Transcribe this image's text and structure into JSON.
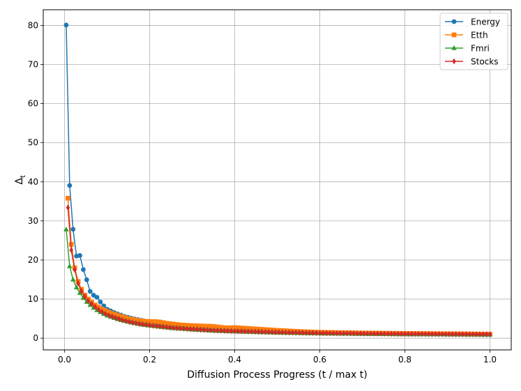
{
  "chart_data": {
    "type": "line",
    "title": "",
    "xlabel": "Diffusion Process Progress (t / max t)",
    "ylabel_main": "Δ",
    "ylabel_sub": "t",
    "xlim": [
      -0.05,
      1.05
    ],
    "ylim": [
      -3,
      84
    ],
    "xticks": [
      0.0,
      0.2,
      0.4,
      0.6,
      0.8,
      1.0
    ],
    "xtick_labels": [
      "0.0",
      "0.2",
      "0.4",
      "0.6",
      "0.8",
      "1.0"
    ],
    "yticks": [
      0,
      10,
      20,
      30,
      40,
      50,
      60,
      70,
      80
    ],
    "ytick_labels": [
      "0",
      "10",
      "20",
      "30",
      "40",
      "50",
      "60",
      "70",
      "80"
    ],
    "grid": true,
    "legend_position": "top-right",
    "num_points": 125,
    "series": [
      {
        "name": "Energy",
        "color": "#1f77b4",
        "marker": "circle",
        "keypoints": [
          [
            0.004,
            80.1
          ],
          [
            0.012,
            39.1
          ],
          [
            0.02,
            27.9
          ],
          [
            0.028,
            21.0
          ],
          [
            0.036,
            21.2
          ],
          [
            0.044,
            17.6
          ],
          [
            0.052,
            15.0
          ],
          [
            0.06,
            12.0
          ],
          [
            0.068,
            11.0
          ],
          [
            0.076,
            10.5
          ],
          [
            0.084,
            9.3
          ],
          [
            0.092,
            8.3
          ],
          [
            0.1,
            7.4
          ],
          [
            0.12,
            6.4
          ],
          [
            0.14,
            5.6
          ],
          [
            0.16,
            5.0
          ],
          [
            0.18,
            4.6
          ],
          [
            0.2,
            4.1
          ],
          [
            0.25,
            3.4
          ],
          [
            0.3,
            2.8
          ],
          [
            0.35,
            2.4
          ],
          [
            0.4,
            2.1
          ],
          [
            0.5,
            1.7
          ],
          [
            0.6,
            1.4
          ],
          [
            0.7,
            1.2
          ],
          [
            0.8,
            1.1
          ],
          [
            0.9,
            1.0
          ],
          [
            1.0,
            0.9
          ]
        ]
      },
      {
        "name": "Etth",
        "color": "#ff7f0e",
        "marker": "square",
        "keypoints": [
          [
            0.008,
            35.8
          ],
          [
            0.016,
            24.0
          ],
          [
            0.024,
            18.0
          ],
          [
            0.032,
            14.5
          ],
          [
            0.04,
            12.5
          ],
          [
            0.048,
            11.0
          ],
          [
            0.056,
            10.0
          ],
          [
            0.07,
            8.6
          ],
          [
            0.09,
            7.3
          ],
          [
            0.11,
            6.4
          ],
          [
            0.13,
            5.7
          ],
          [
            0.15,
            5.0
          ],
          [
            0.17,
            4.6
          ],
          [
            0.19,
            4.3
          ],
          [
            0.22,
            4.2
          ],
          [
            0.24,
            3.8
          ],
          [
            0.27,
            3.4
          ],
          [
            0.3,
            3.2
          ],
          [
            0.35,
            3.0
          ],
          [
            0.38,
            2.6
          ],
          [
            0.4,
            2.7
          ],
          [
            0.43,
            2.5
          ],
          [
            0.47,
            2.2
          ],
          [
            0.5,
            2.0
          ],
          [
            0.55,
            1.7
          ],
          [
            0.6,
            1.5
          ],
          [
            0.7,
            1.3
          ],
          [
            0.8,
            1.2
          ],
          [
            0.9,
            1.1
          ],
          [
            1.0,
            1.0
          ]
        ]
      },
      {
        "name": "Fmri",
        "color": "#2ca02c",
        "marker": "triangle",
        "keypoints": [
          [
            0.004,
            27.8
          ],
          [
            0.012,
            18.4
          ],
          [
            0.02,
            15.0
          ],
          [
            0.028,
            13.0
          ],
          [
            0.036,
            11.6
          ],
          [
            0.044,
            10.3
          ],
          [
            0.052,
            9.3
          ],
          [
            0.06,
            8.5
          ],
          [
            0.07,
            7.6
          ],
          [
            0.08,
            6.9
          ],
          [
            0.09,
            6.3
          ],
          [
            0.1,
            5.8
          ],
          [
            0.12,
            5.0
          ],
          [
            0.14,
            4.4
          ],
          [
            0.16,
            3.9
          ],
          [
            0.18,
            3.5
          ],
          [
            0.2,
            3.2
          ],
          [
            0.25,
            2.6
          ],
          [
            0.3,
            2.2
          ],
          [
            0.35,
            1.9
          ],
          [
            0.4,
            1.7
          ],
          [
            0.5,
            1.4
          ],
          [
            0.6,
            1.2
          ],
          [
            0.7,
            1.1
          ],
          [
            0.8,
            1.0
          ],
          [
            0.9,
            0.95
          ],
          [
            1.0,
            0.9
          ]
        ]
      },
      {
        "name": "Stocks",
        "color": "#d62728",
        "marker": "diamond",
        "keypoints": [
          [
            0.008,
            33.4
          ],
          [
            0.016,
            22.5
          ],
          [
            0.024,
            17.5
          ],
          [
            0.032,
            14.0
          ],
          [
            0.04,
            12.0
          ],
          [
            0.048,
            10.6
          ],
          [
            0.056,
            9.5
          ],
          [
            0.07,
            8.2
          ],
          [
            0.08,
            7.3
          ],
          [
            0.09,
            6.6
          ],
          [
            0.1,
            6.0
          ],
          [
            0.12,
            5.2
          ],
          [
            0.14,
            4.5
          ],
          [
            0.16,
            4.0
          ],
          [
            0.18,
            3.6
          ],
          [
            0.2,
            3.3
          ],
          [
            0.25,
            2.7
          ],
          [
            0.3,
            2.3
          ],
          [
            0.35,
            2.0
          ],
          [
            0.4,
            1.8
          ],
          [
            0.5,
            1.5
          ],
          [
            0.6,
            1.3
          ],
          [
            0.7,
            1.2
          ],
          [
            0.8,
            1.1
          ],
          [
            0.9,
            1.05
          ],
          [
            1.0,
            1.0
          ]
        ]
      }
    ]
  }
}
